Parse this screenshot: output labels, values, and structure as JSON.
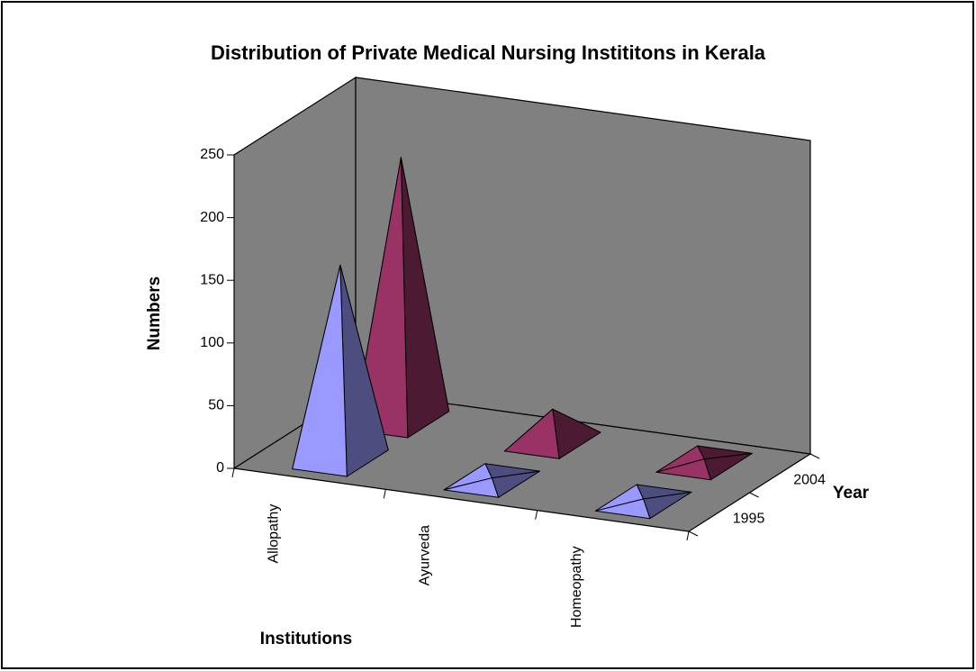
{
  "chart_data": {
    "type": "pyramid3d",
    "title": "Distribution of Private Medical Nursing Instititons in Kerala",
    "x_label": "Institutions",
    "y_label": "Numbers",
    "z_label": "Year",
    "categories": [
      "Allopathy",
      "Ayurveda",
      "Homeopathy"
    ],
    "series": [
      {
        "name": "1995",
        "color": "#9999ff",
        "values": [
          155,
          2,
          2
        ]
      },
      {
        "name": "2004",
        "color": "#993366",
        "values": [
          210,
          26,
          3
        ]
      }
    ],
    "ylim": [
      0,
      250
    ],
    "yticks": [
      0,
      50,
      100,
      150,
      200,
      250
    ],
    "wall_color": "#808080"
  }
}
